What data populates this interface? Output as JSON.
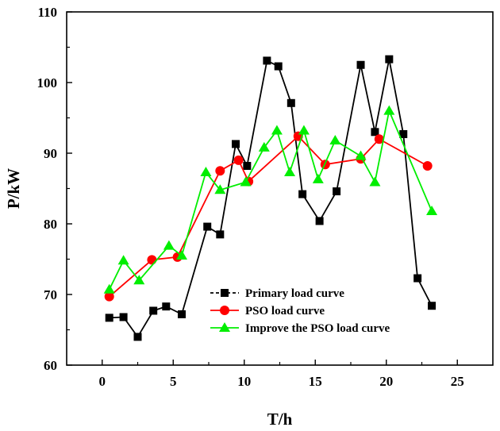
{
  "chart_data": {
    "type": "line",
    "xlabel": "T/h",
    "ylabel": "P/kW",
    "xlim": [
      -2.5,
      27.5
    ],
    "ylim": [
      60,
      110
    ],
    "xticks": [
      0,
      5,
      10,
      15,
      20,
      25
    ],
    "yticks": [
      60,
      70,
      80,
      90,
      100,
      110
    ],
    "grid": false,
    "legend_position": "bottom-center",
    "series": [
      {
        "name": "Primary load curve",
        "color": "#000000",
        "marker": "square",
        "x": [
          0.5,
          1.5,
          2.5,
          3.6,
          4.5,
          5.6,
          7.4,
          8.3,
          9.4,
          10.2,
          11.6,
          12.4,
          13.3,
          14.1,
          15.3,
          16.5,
          18.2,
          19.2,
          20.2,
          21.2,
          22.2,
          23.2
        ],
        "values": [
          66.7,
          66.8,
          64.0,
          67.7,
          68.3,
          67.2,
          79.6,
          78.5,
          91.3,
          88.2,
          103.1,
          102.3,
          97.1,
          84.2,
          80.4,
          84.6,
          102.5,
          93.0,
          103.3,
          92.7,
          72.3,
          68.4
        ]
      },
      {
        "name": "PSO load curve",
        "color": "#ff0000",
        "marker": "circle",
        "x": [
          0.5,
          3.5,
          5.3,
          8.3,
          9.6,
          10.3,
          13.8,
          15.7,
          18.2,
          19.5,
          22.9
        ],
        "values": [
          69.7,
          74.9,
          75.3,
          87.5,
          89.0,
          86.0,
          92.4,
          88.4,
          89.2,
          92.0,
          88.2
        ]
      },
      {
        "name": "Improve the PSO load curve",
        "color": "#00ee00",
        "marker": "triangle",
        "x": [
          0.5,
          1.5,
          2.6,
          4.7,
          5.6,
          7.3,
          8.3,
          10.1,
          11.4,
          12.3,
          13.2,
          14.2,
          15.2,
          16.4,
          18.2,
          19.2,
          20.2,
          23.2
        ],
        "values": [
          70.7,
          74.8,
          72.0,
          76.9,
          75.5,
          87.3,
          84.8,
          85.9,
          90.8,
          93.2,
          87.3,
          93.2,
          86.3,
          91.8,
          89.6,
          85.9,
          96.0,
          81.8
        ]
      }
    ]
  }
}
